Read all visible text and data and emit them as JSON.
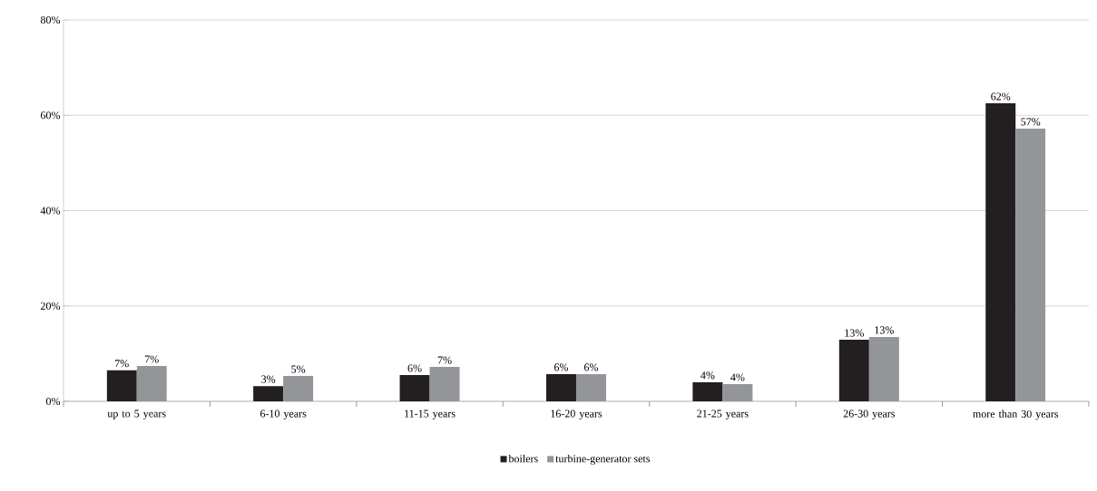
{
  "chart_data": {
    "type": "bar",
    "categories": [
      "up to 5 years",
      "6-10 years",
      "11-15 years",
      "16-20 years",
      "21-25 years",
      "26-30 years",
      "more than 30 years"
    ],
    "series": [
      {
        "name": "boilers",
        "color": "#231f20",
        "values": [
          6.5,
          3.2,
          5.5,
          5.7,
          4.0,
          12.9,
          62.5
        ],
        "value_labels": [
          "7%",
          "3%",
          "6%",
          "6%",
          "4%",
          "13%",
          "62%"
        ]
      },
      {
        "name": "turbine-generator sets",
        "color": "#939598",
        "values": [
          7.4,
          5.3,
          7.2,
          5.7,
          3.6,
          13.5,
          57.2
        ],
        "value_labels": [
          "7%",
          "5%",
          "7%",
          "6%",
          "4%",
          "13%",
          "57%"
        ]
      }
    ],
    "ylim": [
      0,
      80
    ],
    "yticks": [
      {
        "value": 0,
        "label": "0%"
      },
      {
        "value": 20,
        "label": "20%"
      },
      {
        "value": 40,
        "label": "40%"
      },
      {
        "value": 60,
        "label": "60%"
      },
      {
        "value": 80,
        "label": "80%"
      }
    ],
    "grid": "y",
    "legend": "bottom"
  }
}
